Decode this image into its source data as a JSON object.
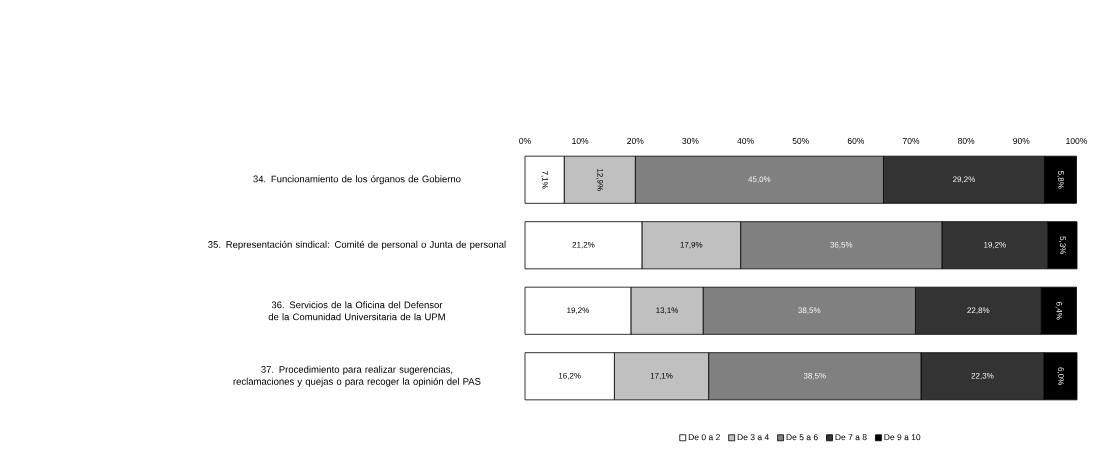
{
  "chart_data": {
    "type": "bar",
    "orientation": "horizontal",
    "stacked": true,
    "categories": [
      "34. Funcionamiento de los órganos de Gobierno",
      "35. Representación sindical: Comité de personal o Junta de personal",
      "36. Servicios de la Oficina del Defensor de la Comunidad Universitaria de la UPM",
      "37. Procedimiento para realizar sugerencias, reclamaciones y quejas o para recoger la opinión del PAS"
    ],
    "series": [
      {
        "name": "De 0 a 2",
        "color": "#ffffff",
        "values": [
          7.1,
          21.2,
          19.2,
          16.2
        ],
        "value_labels": [
          "7,1%",
          "21,2%",
          "19,2%",
          "16,2%"
        ]
      },
      {
        "name": "De 3 a 4",
        "color": "#c0c0c0",
        "values": [
          12.9,
          17.9,
          13.1,
          17.1
        ],
        "value_labels": [
          "12,9%",
          "17,9%",
          "13,1%",
          "17,1%"
        ]
      },
      {
        "name": "De 5 a 6",
        "color": "#808080",
        "values": [
          45.0,
          36.5,
          38.5,
          38.5
        ],
        "value_labels": [
          "45,0%",
          "36,5%",
          "38,5%",
          "38,5%"
        ]
      },
      {
        "name": "De 7 a 8",
        "color": "#333333",
        "values": [
          29.2,
          19.2,
          22.8,
          22.3
        ],
        "value_labels": [
          "29,2%",
          "19,2%",
          "22,8%",
          "22,3%"
        ]
      },
      {
        "name": "De 9 a 10",
        "color": "#000000",
        "values": [
          5.8,
          5.3,
          6.4,
          6.0
        ],
        "value_labels": [
          "5,8%",
          "5,3%",
          "6,4%",
          "6,0%"
        ]
      }
    ],
    "xlim": [
      0,
      100.1
    ],
    "xticks": [
      {
        "value": 0,
        "label": "0%"
      },
      {
        "value": 10,
        "label": "10%"
      },
      {
        "value": 20,
        "label": "20%"
      },
      {
        "value": 30,
        "label": "30%"
      },
      {
        "value": 40,
        "label": "40%"
      },
      {
        "value": 50,
        "label": "50%"
      },
      {
        "value": 60,
        "label": "60%"
      },
      {
        "value": 70,
        "label": "70%"
      },
      {
        "value": 80,
        "label": "80%"
      },
      {
        "value": 90,
        "label": "90%"
      },
      {
        "value": 100,
        "label": "100%"
      }
    ],
    "legend": "bottom",
    "grid": false
  }
}
